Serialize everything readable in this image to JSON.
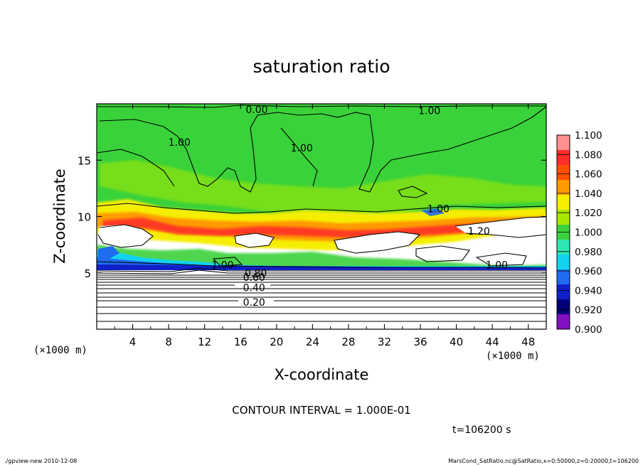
{
  "chart_data": {
    "type": "heatmap",
    "title": "saturation ratio",
    "xlabel": "X-coordinate",
    "ylabel": "Z-coordinate",
    "x_unit_left": "(×1000 m)",
    "x_unit_right": "(×1000 m)",
    "xlim": [
      0,
      50
    ],
    "ylim": [
      0,
      20
    ],
    "x_ticks": [
      4,
      8,
      12,
      16,
      20,
      24,
      28,
      32,
      36,
      40,
      44,
      48
    ],
    "x_tick_labels": [
      "4",
      "8",
      "12",
      "16",
      "20",
      "24",
      "28",
      "32",
      "36",
      "40",
      "44",
      "48"
    ],
    "y_ticks": [
      5,
      10,
      15
    ],
    "y_tick_labels": [
      "5",
      "10",
      "15"
    ],
    "colorbar": {
      "levels": [
        "1.100",
        "1.080",
        "1.060",
        "1.040",
        "1.020",
        "1.000",
        "0.980",
        "0.960",
        "0.940",
        "0.920",
        "0.900"
      ],
      "colors": [
        "#ff9090",
        "#ff2c2c",
        "#ff5000",
        "#ff9a00",
        "#f5ee00",
        "#a8e800",
        "#3ad23a",
        "#2ee6b4",
        "#13d2f0",
        "#1f6cf0",
        "#1020c8",
        "#00007a",
        "#8010c0"
      ]
    },
    "contour_labels": [
      {
        "text": "0.00",
        "x": 17.8,
        "z": 19.5
      },
      {
        "text": "1.00",
        "x": 37.0,
        "z": 19.4
      },
      {
        "text": "1.00",
        "x": 9.2,
        "z": 16.6
      },
      {
        "text": "1.00",
        "x": 22.8,
        "z": 16.1
      },
      {
        "text": "1.00",
        "x": 38.0,
        "z": 10.7
      },
      {
        "text": "1.20",
        "x": 42.5,
        "z": 8.7
      },
      {
        "text": "1.00",
        "x": 14.0,
        "z": 5.7
      },
      {
        "text": "1.00",
        "x": 44.5,
        "z": 5.7
      },
      {
        "text": "0.60",
        "x": 17.5,
        "z": 4.6
      },
      {
        "text": "0.80",
        "x": 17.7,
        "z": 5.0
      },
      {
        "text": "0.40",
        "x": 17.5,
        "z": 3.7
      },
      {
        "text": "0.20",
        "x": 17.5,
        "z": 2.4
      }
    ],
    "contour_interval_text": "CONTOUR INTERVAL = 1.000E-01",
    "time_text": "t=106200 s"
  },
  "footer": {
    "left": "./gpview-new  2010-12-08",
    "right": "MarsCond_SatRatio.nc@SatRatio,x=0:50000,z=0:20000,t=106200"
  }
}
